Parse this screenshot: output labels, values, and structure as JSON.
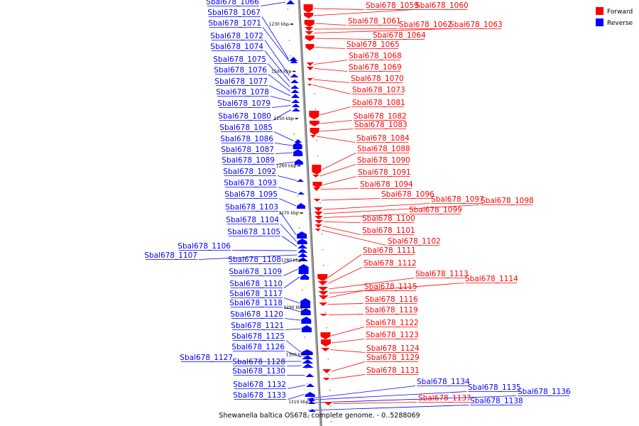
{
  "caption": "Shewanella baltica OS678, complete genome. - 0..5288069",
  "legend": [
    {
      "label": "Forward",
      "color": "#ff0000"
    },
    {
      "label": "Reverse",
      "color": "#0000ff"
    }
  ],
  "colors": {
    "forward": "#ff0000",
    "reverse": "#0000ff",
    "backbone": "#808080"
  },
  "kbp_marks": [
    "1230 kbp",
    "1240 kbp",
    "1250 kbp",
    "1260 kbp",
    "1270 kbp",
    "1280 kbp",
    "1290 kbp",
    "1300 kbp",
    "1310 kbp"
  ],
  "genes": [
    {
      "name": "Sbal678_1059",
      "strand": "forward"
    },
    {
      "name": "Sbal678_1060",
      "strand": "forward"
    },
    {
      "name": "Sbal678_1061",
      "strand": "forward"
    },
    {
      "name": "Sbal678_1062",
      "strand": "forward"
    },
    {
      "name": "Sbal678_1063",
      "strand": "forward"
    },
    {
      "name": "Sbal678_1064",
      "strand": "forward"
    },
    {
      "name": "Sbal678_1065",
      "strand": "forward"
    },
    {
      "name": "Sbal678_1066",
      "strand": "reverse"
    },
    {
      "name": "Sbal678_1067",
      "strand": "reverse"
    },
    {
      "name": "Sbal678_1068",
      "strand": "forward"
    },
    {
      "name": "Sbal678_1069",
      "strand": "forward"
    },
    {
      "name": "Sbal678_1070",
      "strand": "forward"
    },
    {
      "name": "Sbal678_1071",
      "strand": "reverse"
    },
    {
      "name": "Sbal678_1072",
      "strand": "reverse"
    },
    {
      "name": "Sbal678_1073",
      "strand": "forward"
    },
    {
      "name": "Sbal678_1074",
      "strand": "reverse"
    },
    {
      "name": "Sbal678_1075",
      "strand": "reverse"
    },
    {
      "name": "Sbal678_1076",
      "strand": "reverse"
    },
    {
      "name": "Sbal678_1077",
      "strand": "reverse"
    },
    {
      "name": "Sbal678_1078",
      "strand": "reverse"
    },
    {
      "name": "Sbal678_1079",
      "strand": "reverse"
    },
    {
      "name": "Sbal678_1080",
      "strand": "reverse"
    },
    {
      "name": "Sbal678_1081",
      "strand": "forward"
    },
    {
      "name": "Sbal678_1082",
      "strand": "forward"
    },
    {
      "name": "Sbal678_1083",
      "strand": "forward"
    },
    {
      "name": "Sbal678_1084",
      "strand": "forward"
    },
    {
      "name": "Sbal678_1085",
      "strand": "reverse"
    },
    {
      "name": "Sbal678_1086",
      "strand": "reverse"
    },
    {
      "name": "Sbal678_1087",
      "strand": "reverse"
    },
    {
      "name": "Sbal678_1088",
      "strand": "forward"
    },
    {
      "name": "Sbal678_1089",
      "strand": "reverse"
    },
    {
      "name": "Sbal678_1090",
      "strand": "forward"
    },
    {
      "name": "Sbal678_1091",
      "strand": "forward"
    },
    {
      "name": "Sbal678_1092",
      "strand": "reverse"
    },
    {
      "name": "Sbal678_1093",
      "strand": "reverse"
    },
    {
      "name": "Sbal678_1094",
      "strand": "forward"
    },
    {
      "name": "Sbal678_1095",
      "strand": "reverse"
    },
    {
      "name": "Sbal678_1096",
      "strand": "forward"
    },
    {
      "name": "Sbal678_1097",
      "strand": "forward"
    },
    {
      "name": "Sbal678_1098",
      "strand": "forward"
    },
    {
      "name": "Sbal678_1099",
      "strand": "forward"
    },
    {
      "name": "Sbal678_1100",
      "strand": "forward"
    },
    {
      "name": "Sbal678_1101",
      "strand": "forward"
    },
    {
      "name": "Sbal678_1102",
      "strand": "forward"
    },
    {
      "name": "Sbal678_1103",
      "strand": "reverse"
    },
    {
      "name": "Sbal678_1104",
      "strand": "reverse"
    },
    {
      "name": "Sbal678_1105",
      "strand": "reverse"
    },
    {
      "name": "Sbal678_1106",
      "strand": "reverse"
    },
    {
      "name": "Sbal678_1107",
      "strand": "reverse"
    },
    {
      "name": "Sbal678_1108",
      "strand": "reverse"
    },
    {
      "name": "Sbal678_1109",
      "strand": "reverse"
    },
    {
      "name": "Sbal678_1110",
      "strand": "reverse"
    },
    {
      "name": "Sbal678_1111",
      "strand": "forward"
    },
    {
      "name": "Sbal678_1112",
      "strand": "forward"
    },
    {
      "name": "Sbal678_1113",
      "strand": "forward"
    },
    {
      "name": "Sbal678_1114",
      "strand": "forward"
    },
    {
      "name": "Sbal678_1115",
      "strand": "forward"
    },
    {
      "name": "Sbal678_1116",
      "strand": "forward"
    },
    {
      "name": "Sbal678_1117",
      "strand": "reverse"
    },
    {
      "name": "Sbal678_1118",
      "strand": "reverse"
    },
    {
      "name": "Sbal678_1119",
      "strand": "forward"
    },
    {
      "name": "Sbal678_1120",
      "strand": "reverse"
    },
    {
      "name": "Sbal678_1121",
      "strand": "reverse"
    },
    {
      "name": "Sbal678_1122",
      "strand": "forward"
    },
    {
      "name": "Sbal678_1123",
      "strand": "forward"
    },
    {
      "name": "Sbal678_1124",
      "strand": "forward"
    },
    {
      "name": "Sbal678_1125",
      "strand": "reverse"
    },
    {
      "name": "Sbal678_1126",
      "strand": "reverse"
    },
    {
      "name": "Sbal678_1127",
      "strand": "reverse"
    },
    {
      "name": "Sbal678_1128",
      "strand": "reverse"
    },
    {
      "name": "Sbal678_1129",
      "strand": "forward"
    },
    {
      "name": "Sbal678_1130",
      "strand": "reverse"
    },
    {
      "name": "Sbal678_1131",
      "strand": "forward"
    },
    {
      "name": "Sbal678_1132",
      "strand": "reverse"
    },
    {
      "name": "Sbal678_1133",
      "strand": "reverse"
    },
    {
      "name": "Sbal678_1134",
      "strand": "reverse"
    },
    {
      "name": "Sbal678_1135",
      "strand": "reverse"
    },
    {
      "name": "Sbal678_1136",
      "strand": "reverse"
    },
    {
      "name": "Sbal678_1137",
      "strand": "forward"
    },
    {
      "name": "Sbal678_1138",
      "strand": "reverse"
    }
  ]
}
